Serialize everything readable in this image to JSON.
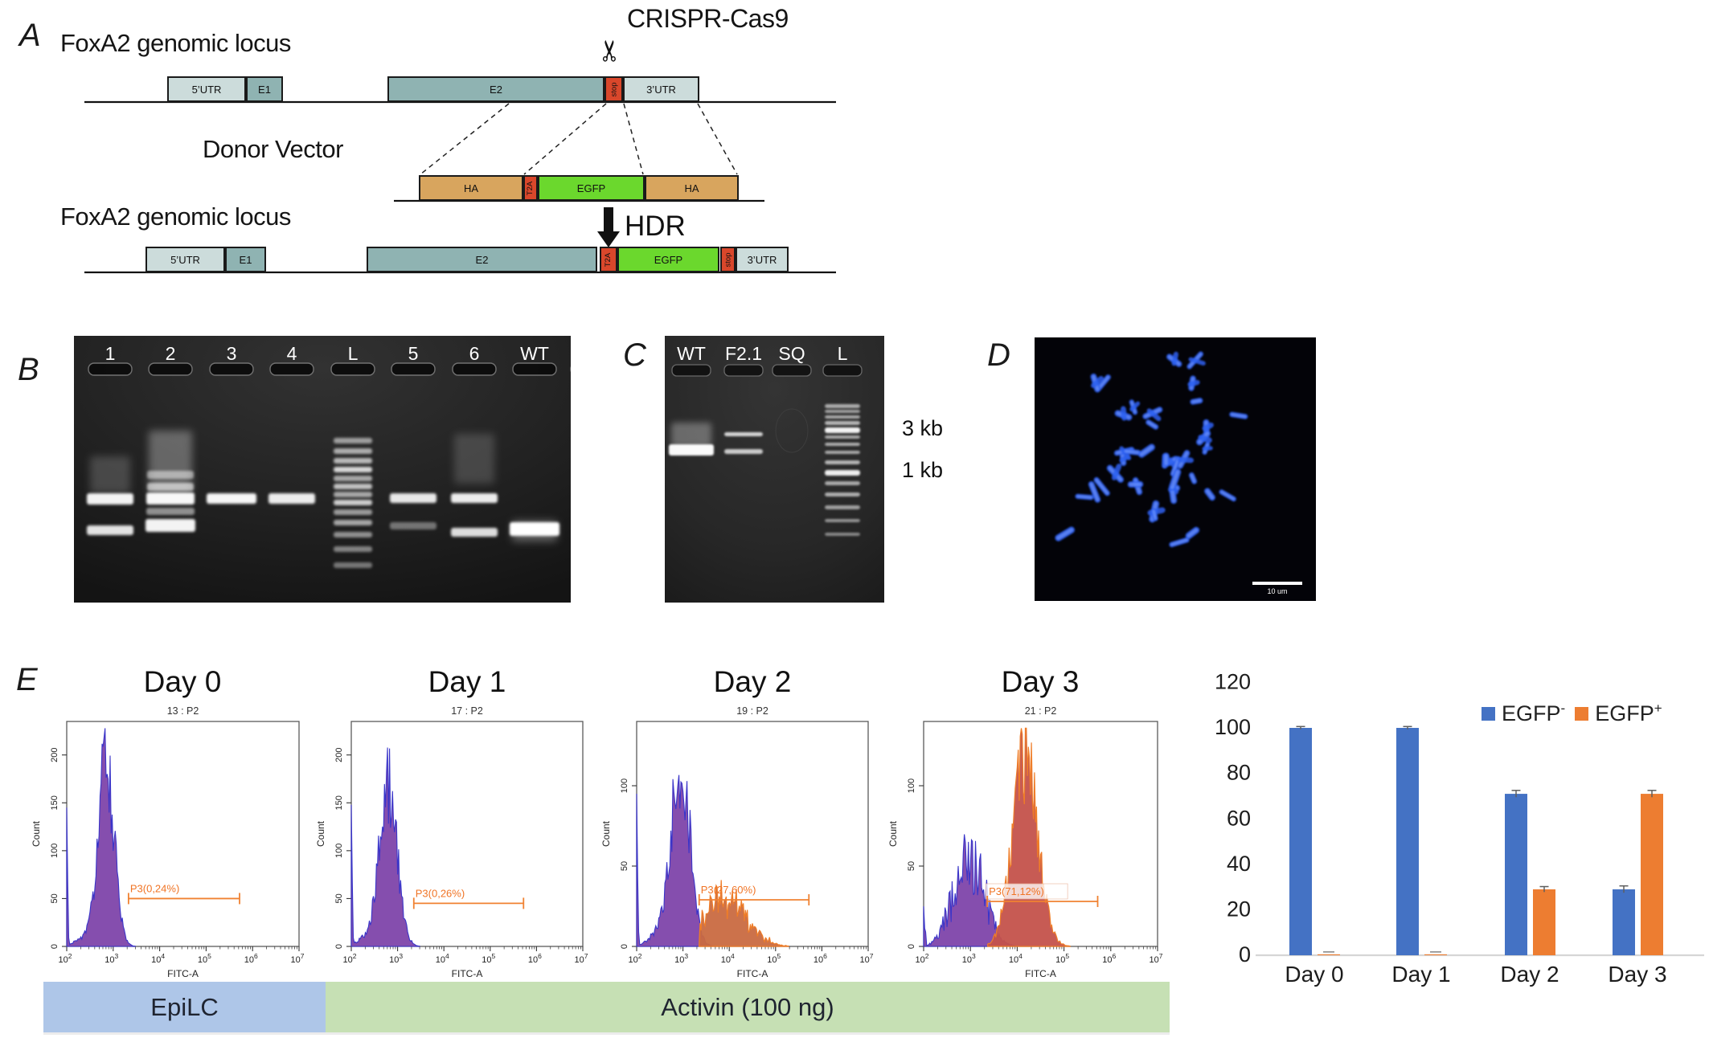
{
  "panel_a": {
    "label": "A",
    "crispr_label": "CRISPR-Cas9",
    "scissors_icon": "✂",
    "locus_title_top": "FoxA2 genomic locus",
    "donor_title": "Donor Vector",
    "hdr_label": "HDR",
    "locus_title_bottom": "FoxA2 genomic locus",
    "colors": {
      "utr": "#ccdcdb",
      "exon": "#8fb3b2",
      "stop": "#d9472b",
      "t2a": "#d9472b",
      "egfp": "#6bd82d",
      "ha": "#d8a55e"
    },
    "row1_segments": [
      {
        "label": "5’UTR",
        "type": "utr",
        "vertical": false
      },
      {
        "label": "E1",
        "type": "exon",
        "vertical": false
      },
      {
        "label": "E2",
        "type": "exon",
        "vertical": false
      },
      {
        "label": "stop",
        "type": "stop",
        "vertical": true
      },
      {
        "label": "3’UTR",
        "type": "utr",
        "vertical": false
      }
    ],
    "donor_segments": [
      {
        "label": "HA",
        "type": "ha",
        "vertical": false
      },
      {
        "label": "T2A",
        "type": "t2a",
        "vertical": true
      },
      {
        "label": "EGFP",
        "type": "egfp",
        "vertical": false
      },
      {
        "label": "HA",
        "type": "ha",
        "vertical": false
      }
    ],
    "row2_segments": [
      {
        "label": "5’UTR",
        "type": "utr",
        "vertical": false
      },
      {
        "label": "E1",
        "type": "exon",
        "vertical": false
      },
      {
        "label": "E2",
        "type": "exon",
        "vertical": false
      },
      {
        "label": "T2A",
        "type": "t2a",
        "vertical": true
      },
      {
        "label": "EGFP",
        "type": "egfp",
        "vertical": false
      },
      {
        "label": "stop",
        "type": "stop",
        "vertical": true
      },
      {
        "label": "3’UTR",
        "type": "utr",
        "vertical": false
      }
    ]
  },
  "panel_b": {
    "label": "B",
    "lanes": [
      "1",
      "2",
      "3",
      "4",
      "L",
      "5",
      "6",
      "WT"
    ]
  },
  "panel_c": {
    "label": "C",
    "lanes": [
      "WT",
      "F2.1",
      "SQ",
      "L"
    ],
    "size_markers": [
      "3 kb",
      "1 kb"
    ]
  },
  "panel_d": {
    "label": "D",
    "scale_bar": "10 um"
  },
  "panel_e": {
    "label": "E",
    "day_titles": [
      "Day 0",
      "Day 1",
      "Day 2",
      "Day 3"
    ],
    "xlabel": "FITC-A",
    "ylabel": "Count",
    "x_tick_base": "10",
    "x_tick_exponents": [
      2,
      3,
      4,
      5,
      6,
      7
    ],
    "ribbons": [
      {
        "label": "EpiLC",
        "color": "#aec6e8"
      },
      {
        "label": "Activin (100 ng)",
        "color": "#c6e0b4"
      }
    ]
  },
  "chart_data": [
    {
      "type": "histogram",
      "day": "Day 0",
      "title": "13 : P2",
      "xlabel": "FITC-A",
      "ylabel": "Count",
      "x_log_range": [
        2,
        7
      ],
      "yticks": [
        0,
        50,
        100,
        150,
        200
      ],
      "ymax": 235,
      "axis_spike": 145,
      "gate": {
        "label": "P3(0,24%)",
        "start_log": 3.33,
        "end_log": 5.72,
        "count": 50,
        "boxed": false
      },
      "populations": [
        {
          "kind": "negative",
          "peak_log": 2.85,
          "sigma": 0.17,
          "height": 198,
          "fill": "#7b3fa7",
          "stroke": "#3a35c9"
        }
      ]
    },
    {
      "type": "histogram",
      "day": "Day 1",
      "title": "17 : P2",
      "xlabel": "FITC-A",
      "ylabel": "Count",
      "x_log_range": [
        2,
        7
      ],
      "yticks": [
        0,
        50,
        100,
        150,
        200
      ],
      "ymax": 235,
      "axis_spike": 148,
      "gate": {
        "label": "P3(0,26%)",
        "start_log": 3.35,
        "end_log": 5.72,
        "count": 45,
        "boxed": false
      },
      "populations": [
        {
          "kind": "negative",
          "peak_log": 2.8,
          "sigma": 0.19,
          "height": 172,
          "fill": "#7b3fa7",
          "stroke": "#3a35c9"
        }
      ]
    },
    {
      "type": "histogram",
      "day": "Day 2",
      "title": "19 : P2",
      "xlabel": "FITC-A",
      "ylabel": "Count",
      "x_log_range": [
        2,
        7
      ],
      "yticks": [
        0,
        50,
        100
      ],
      "ymax": 140,
      "axis_spike": 95,
      "gate": {
        "label": "P3(27,60%)",
        "start_log": 3.35,
        "end_log": 5.72,
        "count": 29,
        "boxed": false
      },
      "populations": [
        {
          "kind": "negative",
          "peak_log": 2.95,
          "sigma": 0.2,
          "height": 116,
          "fill": "#7b3fa7",
          "stroke": "#3a35c9"
        },
        {
          "kind": "positive",
          "peak_log": 3.9,
          "sigma": 0.45,
          "height": 28,
          "plateau": true,
          "fill": "#c96a41",
          "stroke": "#ef7d28"
        }
      ]
    },
    {
      "type": "histogram",
      "day": "Day 3",
      "title": "21 : P2",
      "xlabel": "FITC-A",
      "ylabel": "Count",
      "x_log_range": [
        2,
        7
      ],
      "yticks": [
        0,
        50,
        100
      ],
      "ymax": 140,
      "axis_spike": 25,
      "gate": {
        "label": "P3(71,12%)",
        "start_log": 3.36,
        "end_log": 5.72,
        "count": 28,
        "boxed": true
      },
      "populations": [
        {
          "kind": "negative",
          "peak_log": 3.02,
          "sigma": 0.3,
          "height": 52,
          "fill": "#7b3fa7",
          "stroke": "#3a35c9"
        },
        {
          "kind": "positive",
          "peak_log": 4.17,
          "sigma": 0.27,
          "height": 118,
          "plateau": false,
          "fill": "#c4524b",
          "stroke": "#ef7d28"
        }
      ]
    },
    {
      "type": "bar",
      "categories": [
        "Day 0",
        "Day 1",
        "Day 2",
        "Day 3"
      ],
      "series": [
        {
          "name": "EGFP-",
          "base": "EGFP",
          "sup": "-",
          "color": "#4472c4",
          "values": [
            100,
            100,
            71,
            29
          ],
          "errors": [
            0.6,
            0.6,
            1.5,
            1.5
          ]
        },
        {
          "name": "EGFP+",
          "base": "EGFP",
          "sup": "+",
          "color": "#ed7d31",
          "values": [
            0.4,
            0.4,
            29,
            71
          ],
          "errors": [
            0.3,
            0.3,
            1.2,
            1.5
          ]
        }
      ],
      "yticks": [
        0,
        20,
        40,
        60,
        80,
        100,
        120
      ],
      "ylim": [
        0,
        120
      ],
      "grid": false,
      "legend_position": "top-right"
    }
  ]
}
